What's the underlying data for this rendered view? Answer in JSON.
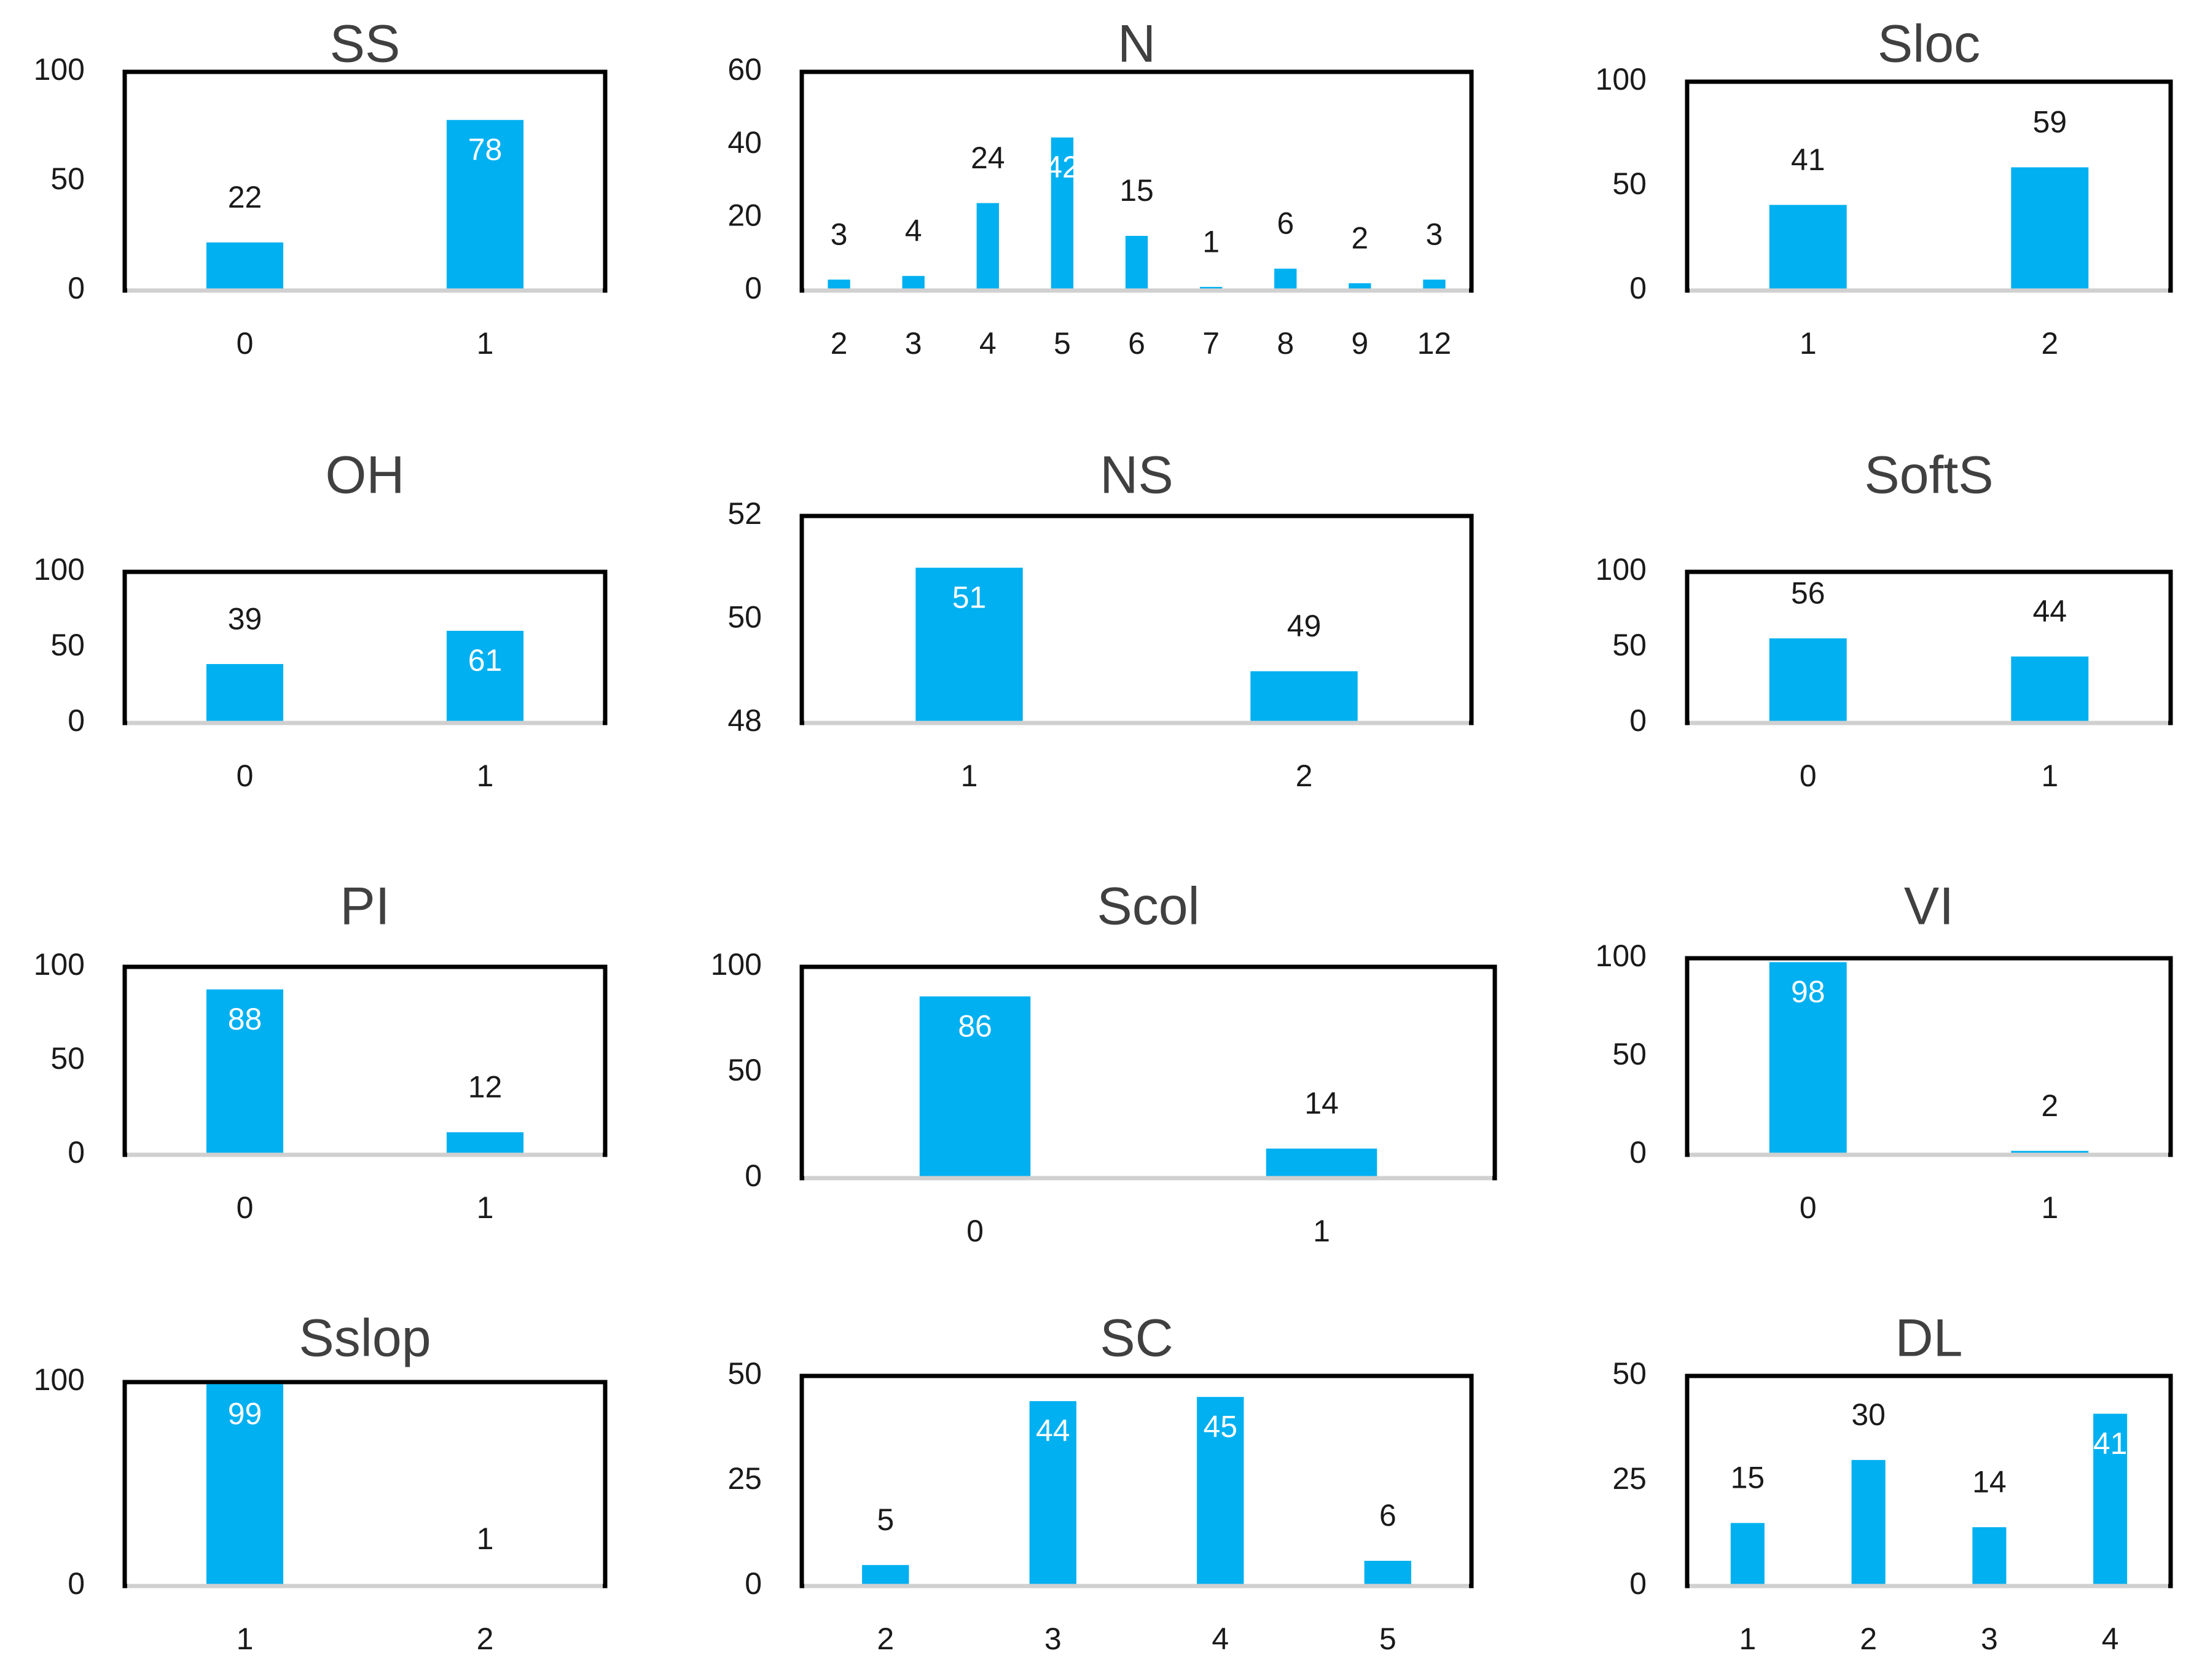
{
  "colors": {
    "bar": "#00b0f0",
    "frame": "#000000",
    "label_inside": "#ffffff",
    "label_outside": "#1a1a1a"
  },
  "chart_data": [
    {
      "type": "bar",
      "title": "SS",
      "categories": [
        "0",
        "1"
      ],
      "values": [
        22,
        78
      ],
      "ylim": [
        0,
        100
      ],
      "yticks": [
        0,
        50,
        100
      ]
    },
    {
      "type": "bar",
      "title": "N",
      "categories": [
        "2",
        "3",
        "4",
        "5",
        "6",
        "7",
        "8",
        "9",
        "12"
      ],
      "values": [
        3,
        4,
        24,
        42,
        15,
        1,
        6,
        2,
        3
      ],
      "ylim": [
        0,
        60
      ],
      "yticks": [
        0,
        20,
        40,
        60
      ]
    },
    {
      "type": "bar",
      "title": "Sloc",
      "categories": [
        "1",
        "2"
      ],
      "values": [
        41,
        59
      ],
      "ylim": [
        0,
        100
      ],
      "yticks": [
        0,
        50,
        100
      ]
    },
    {
      "type": "bar",
      "title": "OH",
      "categories": [
        "0",
        "1"
      ],
      "values": [
        39,
        61
      ],
      "ylim": [
        0,
        100
      ],
      "yticks": [
        0,
        50,
        100
      ]
    },
    {
      "type": "bar",
      "title": "NS",
      "categories": [
        "1",
        "2"
      ],
      "values": [
        51,
        49
      ],
      "ylim": [
        48,
        52
      ],
      "yticks": [
        48,
        50,
        52
      ]
    },
    {
      "type": "bar",
      "title": "SoftS",
      "categories": [
        "0",
        "1"
      ],
      "values": [
        56,
        44
      ],
      "ylim": [
        0,
        100
      ],
      "yticks": [
        0,
        50,
        100
      ]
    },
    {
      "type": "bar",
      "title": "PI",
      "categories": [
        "0",
        "1"
      ],
      "values": [
        88,
        12
      ],
      "ylim": [
        0,
        100
      ],
      "yticks": [
        0,
        50,
        100
      ]
    },
    {
      "type": "bar",
      "title": "Scol",
      "categories": [
        "0",
        "1"
      ],
      "values": [
        86,
        14
      ],
      "ylim": [
        0,
        100
      ],
      "yticks": [
        0,
        50,
        100
      ]
    },
    {
      "type": "bar",
      "title": "VI",
      "categories": [
        "0",
        "1"
      ],
      "values": [
        98,
        2
      ],
      "ylim": [
        0,
        100
      ],
      "yticks": [
        0,
        50,
        100
      ]
    },
    {
      "type": "bar",
      "title": "Sslop",
      "categories": [
        "1",
        "2"
      ],
      "values": [
        99,
        1
      ],
      "ylim": [
        0,
        100
      ],
      "yticks": [
        0,
        100
      ]
    },
    {
      "type": "bar",
      "title": "SC",
      "categories": [
        "2",
        "3",
        "4",
        "5"
      ],
      "values": [
        5,
        44,
        45,
        6
      ],
      "ylim": [
        0,
        50
      ],
      "yticks": [
        0,
        25,
        50
      ]
    },
    {
      "type": "bar",
      "title": "DL",
      "categories": [
        "1",
        "2",
        "3",
        "4"
      ],
      "values": [
        15,
        30,
        14,
        41
      ],
      "ylim": [
        0,
        50
      ],
      "yticks": [
        0,
        25,
        50
      ]
    }
  ]
}
